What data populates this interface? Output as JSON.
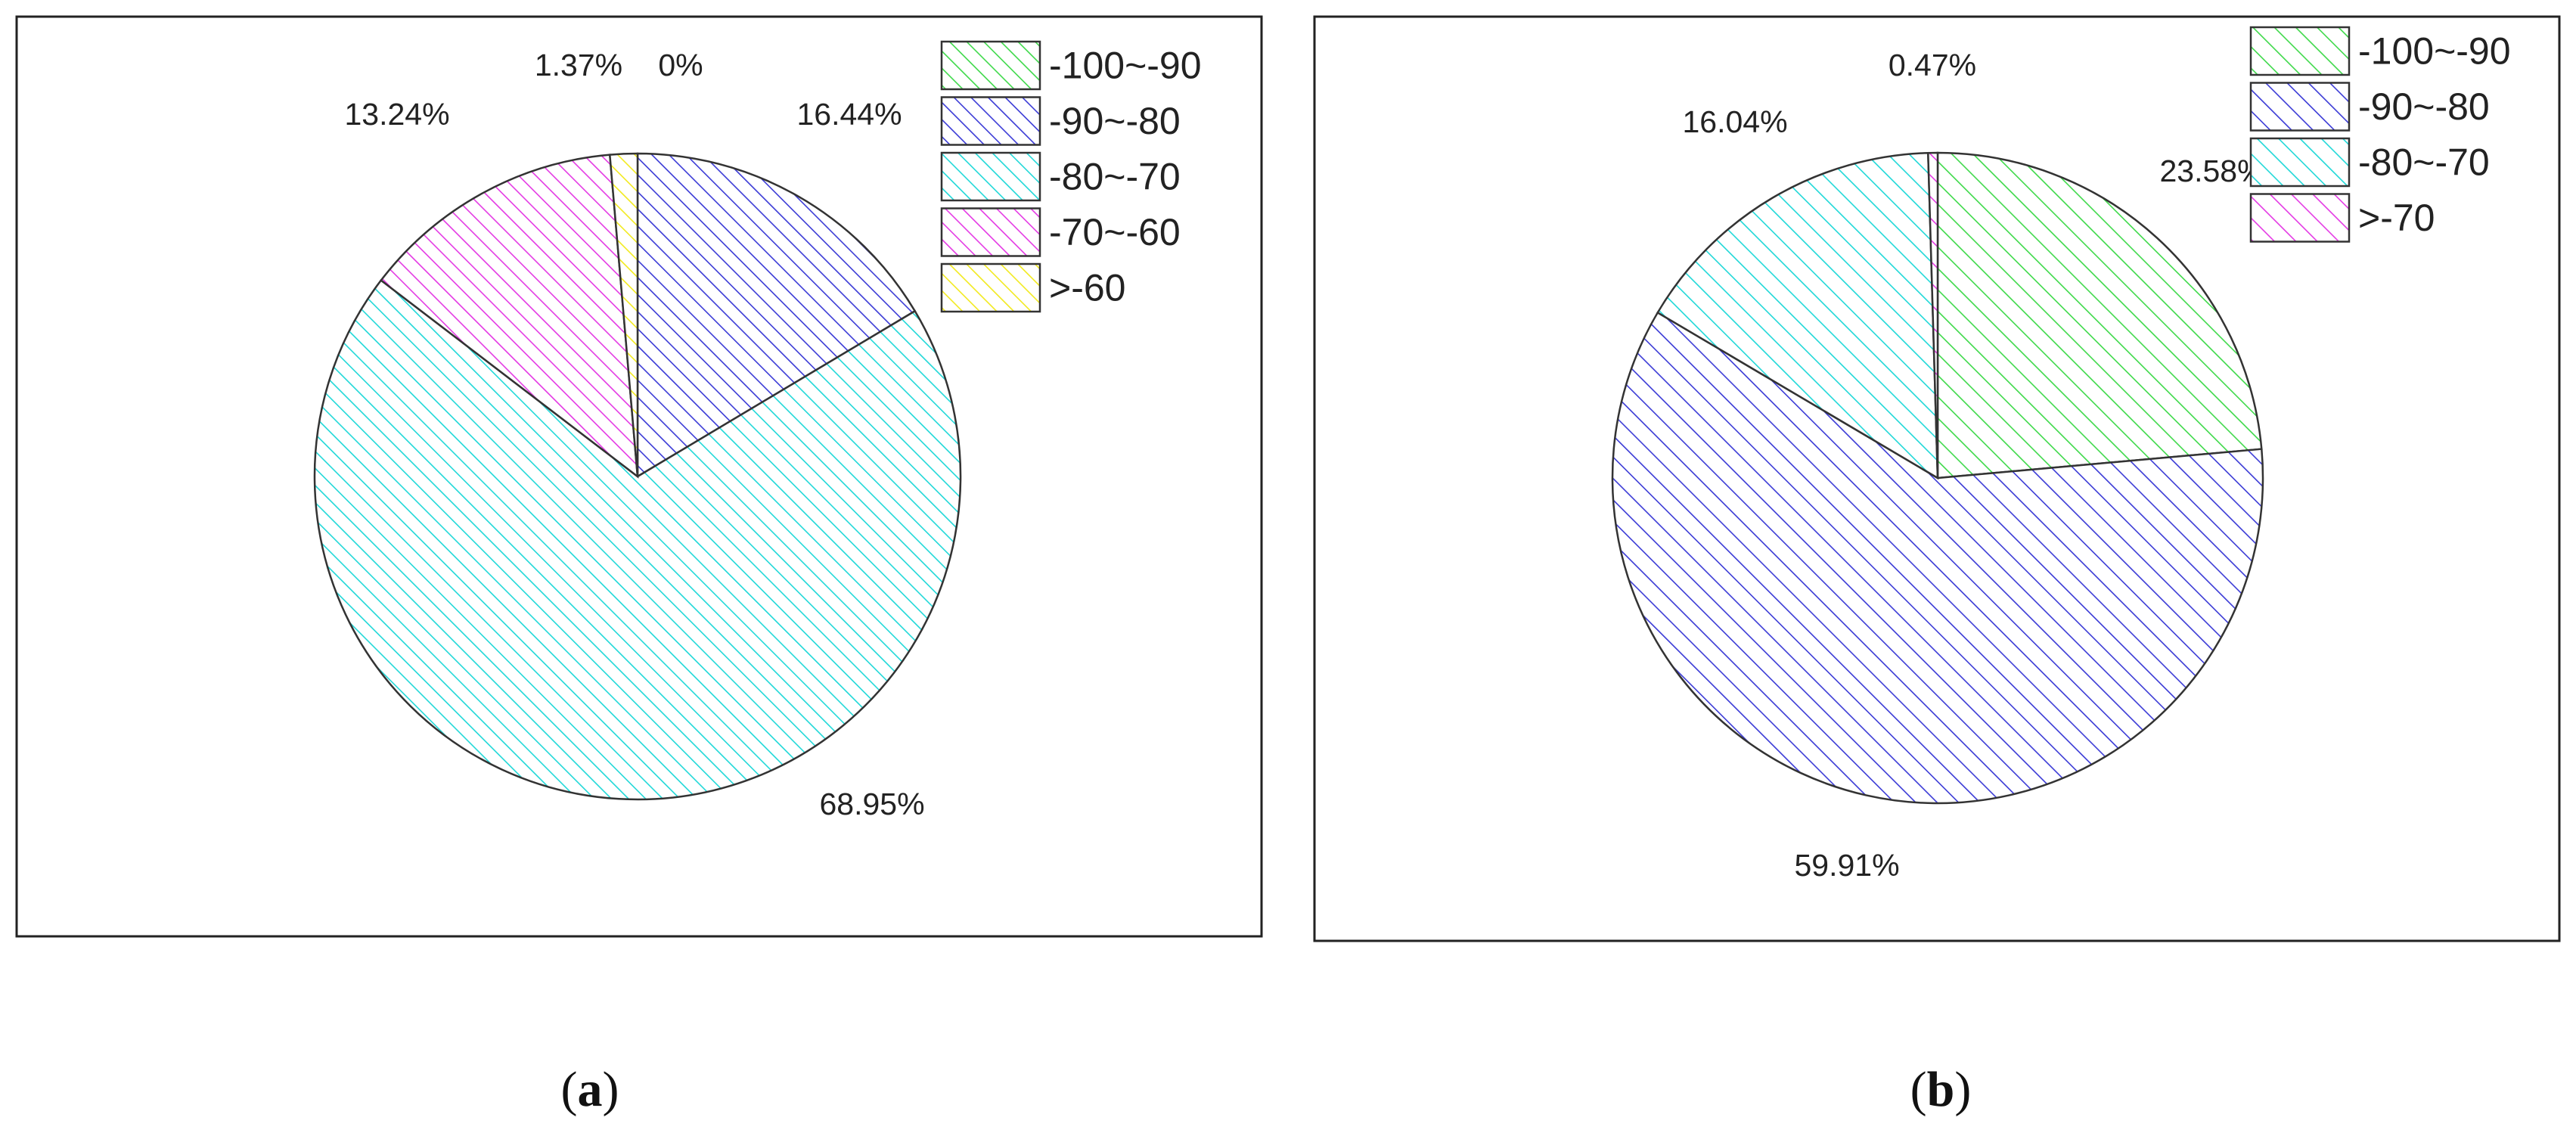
{
  "colors": {
    "green": "#3ed94a",
    "blue": "#3a3ad6",
    "cyan": "#20d8d8",
    "magenta": "#e43ae4",
    "yellow": "#f2ea1e"
  },
  "chart_data": [
    {
      "panel": "a",
      "type": "pie",
      "caption": "a",
      "legend_position": "top-right",
      "slices": [
        {
          "name": "-100~-90",
          "value": 0,
          "label": "0%",
          "color": "#3ed94a"
        },
        {
          "name": "-90~-80",
          "value": 16.44,
          "label": "16.44%",
          "color": "#3a3ad6"
        },
        {
          "name": "-80~-70",
          "value": 68.95,
          "label": "68.95%",
          "color": "#20d8d8"
        },
        {
          "name": "-70~-60",
          "value": 13.24,
          "label": "13.24%",
          "color": "#e43ae4"
        },
        {
          "name": ">-60",
          "value": 1.37,
          "label": "1.37%",
          "color": "#f2ea1e"
        }
      ]
    },
    {
      "panel": "b",
      "type": "pie",
      "caption": "b",
      "legend_position": "top-right",
      "slices": [
        {
          "name": "-100~-90",
          "value": 23.58,
          "label": "23.58%",
          "color": "#3ed94a"
        },
        {
          "name": "-90~-80",
          "value": 59.91,
          "label": "59.91%",
          "color": "#3a3ad6"
        },
        {
          "name": "-80~-70",
          "value": 16.04,
          "label": "16.04%",
          "color": "#20d8d8"
        },
        {
          "name": ">-70",
          "value": 0.47,
          "label": "0.47%",
          "color": "#e43ae4"
        }
      ]
    }
  ]
}
